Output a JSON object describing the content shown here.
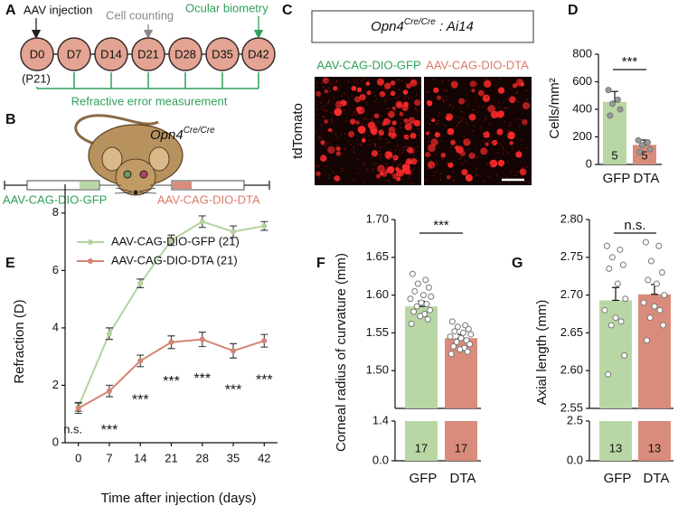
{
  "panel_labels": [
    "A",
    "B",
    "C",
    "D",
    "E",
    "F",
    "G"
  ],
  "timeline": {
    "days": [
      "D0",
      "D7",
      "D14",
      "D21",
      "D28",
      "D35",
      "D42"
    ],
    "start_age": "(P21)",
    "events": [
      "AAV injection",
      "Cell counting",
      "Ocular biometry"
    ],
    "bracket_label": "Refractive error measurement"
  },
  "mouse": {
    "gene": "Opn4",
    "genotype": "Cre/Cre",
    "left_label": "AAV-CAG-DIO-GFP",
    "right_label": "AAV-CAG-DIO-DTA"
  },
  "images": {
    "title_gene": "Opn4",
    "title_genotype": "Cre/Cre",
    "title_suffix": " : Ai14",
    "left_label": "AAV-CAG-DIO-GFP",
    "right_label": "AAV-CAG-DIO-DTA",
    "row_label": "tdTomato"
  },
  "chart_data": [
    {
      "type": "bar",
      "ylabel": "Cells/mm²",
      "categories": [
        "GFP",
        "DTA"
      ],
      "values": [
        455,
        142
      ],
      "errors": [
        75,
        35
      ],
      "colors": [
        "#b9d7a4",
        "#d98c7c"
      ],
      "points": [
        [
          540,
          470,
          440,
          400,
          355
        ],
        [
          175,
          160,
          140,
          110,
          90
        ]
      ],
      "n_labels": [
        5,
        5
      ],
      "significance": "***",
      "ylim": [
        0,
        800
      ],
      "yticks": [
        0,
        200,
        400,
        600,
        800
      ]
    },
    {
      "type": "line",
      "xlabel": "Time after injection (days)",
      "ylabel": "Refraction (D)",
      "x": [
        0,
        7,
        14,
        21,
        28,
        35,
        42
      ],
      "xlim": [
        -3,
        45
      ],
      "xticks": [
        0,
        7,
        14,
        21,
        28,
        35,
        42
      ],
      "ylim": [
        0,
        9
      ],
      "yticks": [
        0,
        2,
        4,
        6,
        8
      ],
      "series": [
        {
          "name": "AAV-CAG-DIO-GFP (21)",
          "color": "#b3d39c",
          "values": [
            1.25,
            3.8,
            5.55,
            7.05,
            7.7,
            7.35,
            7.55
          ],
          "errors": [
            0.15,
            0.2,
            0.15,
            0.18,
            0.2,
            0.2,
            0.15
          ]
        },
        {
          "name": "AAV-CAG-DIO-DTA (21)",
          "color": "#d48574",
          "values": [
            1.2,
            1.8,
            2.85,
            3.5,
            3.6,
            3.2,
            3.55
          ],
          "errors": [
            0.18,
            0.2,
            0.2,
            0.22,
            0.25,
            0.25,
            0.22
          ]
        }
      ],
      "annotations": [
        "n.s.",
        "***",
        "***",
        "***",
        "***",
        "***",
        "***"
      ]
    },
    {
      "type": "broken_bar",
      "ylabel": "Corneal radius of curvature (mm)",
      "categories": [
        "GFP",
        "DTA"
      ],
      "values": [
        1.585,
        1.543
      ],
      "errors": [
        0.007,
        0.005
      ],
      "colors": [
        "#b9d7a4",
        "#d98c7c"
      ],
      "points": [
        [
          1.628,
          1.62,
          1.615,
          1.61,
          1.605,
          1.6,
          1.598,
          1.595,
          1.59,
          1.588,
          1.585,
          1.58,
          1.578,
          1.575,
          1.572,
          1.568,
          1.562
        ],
        [
          1.565,
          1.56,
          1.558,
          1.555,
          1.552,
          1.55,
          1.548,
          1.545,
          1.543,
          1.54,
          1.538,
          1.535,
          1.532,
          1.53,
          1.528,
          1.525,
          1.522
        ]
      ],
      "n_labels": [
        17,
        17
      ],
      "significance": "***",
      "ylim": [
        1.45,
        1.7
      ],
      "yticks": [
        {
          "value": 1.5,
          "label": "1.50"
        },
        1.55,
        {
          "value": 1.6,
          "label": "1.60"
        },
        1.65,
        {
          "value": 1.7,
          "label": "1.70"
        }
      ],
      "lower_ylim": [
        0,
        1.4
      ],
      "lower_yticks": [
        {
          "value": 0,
          "label": "0.0"
        },
        1.4
      ]
    },
    {
      "type": "broken_bar",
      "ylabel": "Axial length (mm)",
      "categories": [
        "GFP",
        "DTA"
      ],
      "values": [
        2.693,
        2.701
      ],
      "errors": [
        0.017,
        0.013
      ],
      "colors": [
        "#b9d7a4",
        "#d98c7c"
      ],
      "points": [
        [
          2.765,
          2.76,
          2.75,
          2.74,
          2.735,
          2.715,
          2.695,
          2.68,
          2.67,
          2.665,
          2.66,
          2.62,
          2.595
        ],
        [
          2.77,
          2.765,
          2.745,
          2.73,
          2.72,
          2.715,
          2.7,
          2.69,
          2.685,
          2.68,
          2.67,
          2.66,
          2.64
        ]
      ],
      "n_labels": [
        13,
        13
      ],
      "significance": "n.s.",
      "ylim": [
        2.55,
        2.8
      ],
      "yticks": [
        2.55,
        {
          "value": 2.6,
          "label": "2.60"
        },
        2.65,
        {
          "value": 2.7,
          "label": "2.70"
        },
        2.75,
        {
          "value": 2.8,
          "label": "2.80"
        }
      ],
      "lower_ylim": [
        0,
        2.5
      ],
      "lower_yticks": [
        {
          "value": 0,
          "label": "0.0"
        },
        2.5
      ]
    }
  ]
}
